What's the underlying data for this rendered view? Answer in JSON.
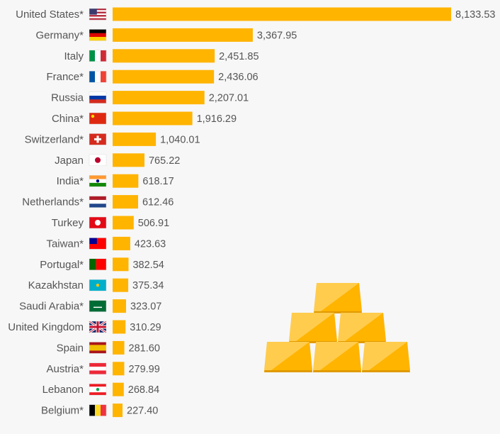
{
  "chart_data": {
    "type": "bar",
    "orientation": "horizontal",
    "title": "",
    "xlabel": "",
    "ylabel": "",
    "xlim": [
      0,
      8133.53
    ],
    "grid": false,
    "bar_color": "#ffb400",
    "categories": [
      "United States*",
      "Germany*",
      "Italy",
      "France*",
      "Russia",
      "China*",
      "Switzerland*",
      "Japan",
      "India*",
      "Netherlands*",
      "Turkey",
      "Taiwan*",
      "Portugal*",
      "Kazakhstan",
      "Saudi Arabia*",
      "United Kingdom",
      "Spain",
      "Austria*",
      "Lebanon",
      "Belgium*"
    ],
    "values": [
      8133.53,
      3367.95,
      2451.85,
      2436.06,
      2207.01,
      1916.29,
      1040.01,
      765.22,
      618.17,
      612.46,
      506.91,
      423.63,
      382.54,
      375.34,
      323.07,
      310.29,
      281.6,
      279.99,
      268.84,
      227.4
    ],
    "value_labels": [
      "8,133.53",
      "3,367.95",
      "2,451.85",
      "2,436.06",
      "2,207.01",
      "1,916.29",
      "1,040.01",
      "765.22",
      "618.17",
      "612.46",
      "506.91",
      "423.63",
      "382.54",
      "375.34",
      "323.07",
      "310.29",
      "281.60",
      "279.99",
      "268.84",
      "227.40"
    ],
    "flags": [
      "us-flag-icon",
      "de-flag-icon",
      "it-flag-icon",
      "fr-flag-icon",
      "ru-flag-icon",
      "cn-flag-icon",
      "ch-flag-icon",
      "jp-flag-icon",
      "in-flag-icon",
      "nl-flag-icon",
      "tr-flag-icon",
      "tw-flag-icon",
      "pt-flag-icon",
      "kz-flag-icon",
      "sa-flag-icon",
      "gb-flag-icon",
      "es-flag-icon",
      "at-flag-icon",
      "lb-flag-icon",
      "be-flag-icon"
    ]
  },
  "decoration": {
    "icon": "gold-bars-icon",
    "colors": {
      "light": "#ffcc4d",
      "dark": "#ffb400",
      "shadow": "#e09a00"
    }
  }
}
